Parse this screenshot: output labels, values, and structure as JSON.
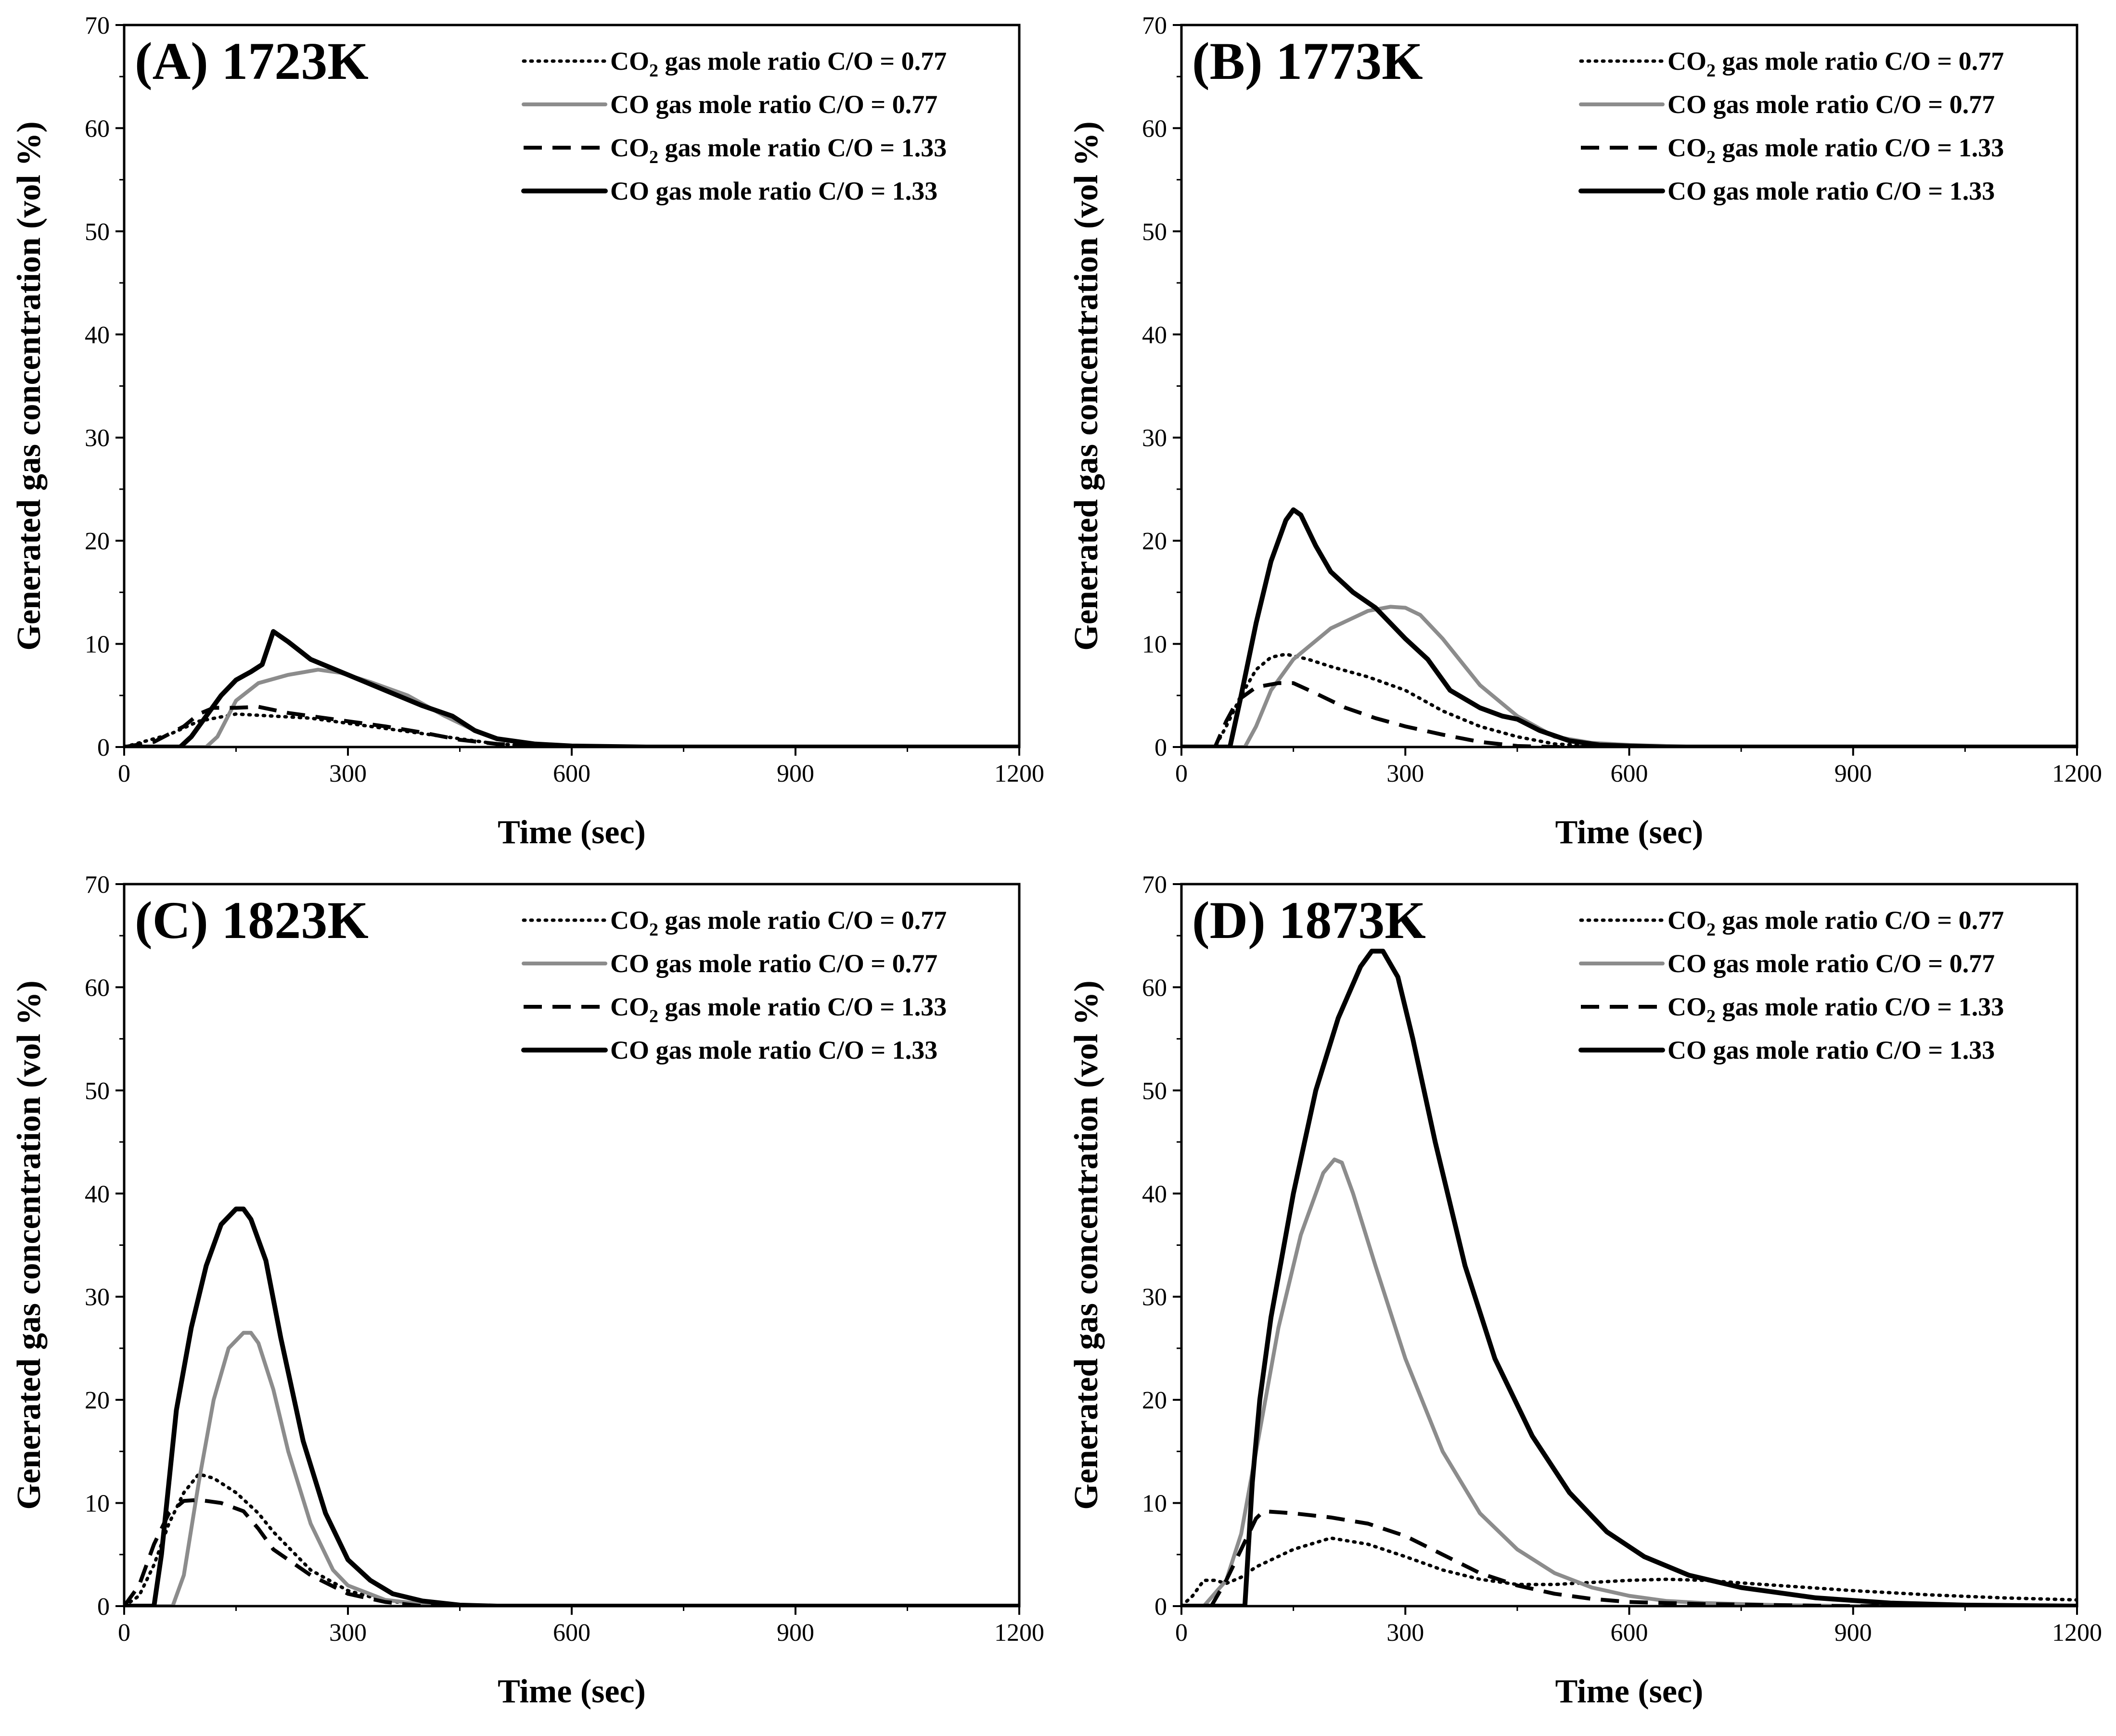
{
  "figure": {
    "series_names": [
      "CO2 gas mole ratio C/O = 0.77",
      "CO gas mole ratio C/O = 0.77",
      "CO2 gas mole ratio C/O = 1.33",
      "CO gas mole ratio C/O = 1.33"
    ],
    "series_styles": [
      {
        "color": "#000000",
        "dash": "dotted"
      },
      {
        "color": "#8c8c8c",
        "dash": "solid"
      },
      {
        "color": "#000000",
        "dash": "dashed"
      },
      {
        "color": "#000000",
        "dash": "solid-thick"
      }
    ]
  },
  "chart_data": [
    {
      "type": "line",
      "title": "(A) 1723K",
      "xlabel": "Time (sec)",
      "ylabel": "Generated gas concentration (vol %)",
      "xlim": [
        0,
        1200
      ],
      "ylim": [
        0,
        70
      ],
      "xticks": [
        "0",
        "300",
        "600",
        "900",
        "1200"
      ],
      "yticks": [
        "0",
        "10",
        "20",
        "30",
        "40",
        "50",
        "60",
        "70"
      ],
      "legend": [
        {
          "prefix": "CO",
          "sub": "2",
          "suffix": " gas mole ratio C/O = 0.77"
        },
        {
          "prefix": "CO gas mole ratio C/O = 0.77",
          "sub": "",
          "suffix": ""
        },
        {
          "prefix": "CO",
          "sub": "2",
          "suffix": " gas mole ratio C/O = 1.33"
        },
        {
          "prefix": "CO gas mole ratio C/O = 1.33",
          "sub": "",
          "suffix": ""
        }
      ],
      "series": [
        {
          "name": "CO2 gas mole ratio C/O = 0.77",
          "x": [
            0,
            60,
            100,
            150,
            200,
            250,
            300,
            350,
            400,
            450,
            500,
            550,
            600,
            700,
            1200
          ],
          "y": [
            0,
            1.2,
            2.5,
            3.2,
            3.0,
            2.8,
            2.3,
            1.8,
            1.3,
            0.8,
            0.3,
            0.1,
            0.05,
            0,
            0
          ]
        },
        {
          "name": "CO gas mole ratio C/O = 0.77",
          "x": [
            0,
            110,
            125,
            150,
            180,
            220,
            260,
            290,
            330,
            380,
            430,
            470,
            500,
            550,
            600,
            700,
            1200
          ],
          "y": [
            0,
            0,
            1,
            4.5,
            6.2,
            7.0,
            7.5,
            7.2,
            6.3,
            5.0,
            3.0,
            1.6,
            0.8,
            0.3,
            0.1,
            0,
            0
          ]
        },
        {
          "name": "CO2 gas mole ratio C/O = 1.33",
          "x": [
            0,
            40,
            80,
            100,
            120,
            150,
            180,
            200,
            220,
            260,
            300,
            350,
            400,
            450,
            500,
            550,
            600,
            1200
          ],
          "y": [
            0,
            0.5,
            2,
            3.2,
            3.8,
            3.8,
            3.9,
            3.6,
            3.3,
            2.9,
            2.5,
            2.0,
            1.4,
            0.7,
            0.3,
            0.1,
            0,
            0
          ]
        },
        {
          "name": "CO gas mole ratio C/O = 1.33",
          "x": [
            0,
            75,
            90,
            110,
            130,
            150,
            170,
            185,
            200,
            220,
            250,
            300,
            350,
            400,
            440,
            470,
            500,
            550,
            600,
            700,
            1200
          ],
          "y": [
            0,
            0,
            1,
            3,
            5,
            6.5,
            7.3,
            8.0,
            11.2,
            10.2,
            8.5,
            7.0,
            5.5,
            4.0,
            3.0,
            1.6,
            0.8,
            0.3,
            0.1,
            0,
            0
          ]
        }
      ]
    },
    {
      "type": "line",
      "title": "(B) 1773K",
      "xlabel": "Time (sec)",
      "ylabel": "Generated gas concentration (vol %)",
      "xlim": [
        0,
        1200
      ],
      "ylim": [
        0,
        70
      ],
      "xticks": [
        "0",
        "300",
        "600",
        "900",
        "1200"
      ],
      "yticks": [
        "0",
        "10",
        "20",
        "30",
        "40",
        "50",
        "60",
        "70"
      ],
      "legend": [
        {
          "prefix": "CO",
          "sub": "2",
          "suffix": " gas mole ratio C/O = 0.77"
        },
        {
          "prefix": "CO gas mole ratio C/O = 0.77",
          "sub": "",
          "suffix": ""
        },
        {
          "prefix": "CO",
          "sub": "2",
          "suffix": " gas mole ratio C/O = 1.33"
        },
        {
          "prefix": "CO gas mole ratio C/O = 1.33",
          "sub": "",
          "suffix": ""
        }
      ],
      "series": [
        {
          "name": "CO2 gas mole ratio C/O = 0.77",
          "x": [
            0,
            45,
            60,
            80,
            100,
            120,
            140,
            170,
            200,
            250,
            300,
            350,
            400,
            450,
            500,
            550,
            600,
            1200
          ],
          "y": [
            0,
            0,
            2,
            5,
            7.5,
            8.7,
            9.0,
            8.5,
            7.8,
            6.8,
            5.5,
            3.5,
            2.0,
            1.0,
            0.3,
            0.1,
            0,
            0
          ]
        },
        {
          "name": "CO gas mole ratio C/O = 0.77",
          "x": [
            0,
            85,
            100,
            120,
            150,
            200,
            250,
            280,
            300,
            320,
            350,
            400,
            450,
            500,
            550,
            600,
            650,
            700,
            1200
          ],
          "y": [
            0,
            0,
            2,
            5.5,
            8.5,
            11.5,
            13.2,
            13.6,
            13.5,
            12.8,
            10.5,
            6.0,
            3.0,
            1.0,
            0.4,
            0.2,
            0.1,
            0,
            0
          ]
        },
        {
          "name": "CO2 gas mole ratio C/O = 1.33",
          "x": [
            0,
            45,
            60,
            75,
            100,
            130,
            150,
            180,
            220,
            260,
            300,
            350,
            400,
            450,
            500,
            1200
          ],
          "y": [
            0,
            0,
            2.5,
            4.5,
            5.8,
            6.2,
            6.2,
            5.2,
            3.8,
            2.8,
            2.0,
            1.2,
            0.5,
            0.1,
            0,
            0
          ]
        },
        {
          "name": "CO gas mole ratio C/O = 1.33",
          "x": [
            0,
            65,
            80,
            100,
            120,
            140,
            150,
            160,
            180,
            200,
            230,
            260,
            300,
            330,
            360,
            400,
            430,
            450,
            480,
            520,
            560,
            600,
            650,
            1200
          ],
          "y": [
            0,
            0,
            5,
            12,
            18,
            22,
            23,
            22.5,
            19.5,
            17,
            15,
            13.5,
            10.5,
            8.5,
            5.5,
            3.8,
            3.0,
            2.7,
            1.6,
            0.6,
            0.2,
            0.1,
            0,
            0
          ]
        }
      ]
    },
    {
      "type": "line",
      "title": "(C) 1823K",
      "xlabel": "Time (sec)",
      "ylabel": "Generated gas concentration (vol %)",
      "xlim": [
        0,
        1200
      ],
      "ylim": [
        0,
        70
      ],
      "xticks": [
        "0",
        "300",
        "600",
        "900",
        "1200"
      ],
      "yticks": [
        "0",
        "10",
        "20",
        "30",
        "40",
        "50",
        "60",
        "70"
      ],
      "legend": [
        {
          "prefix": "CO",
          "sub": "2",
          "suffix": " gas mole ratio C/O = 0.77"
        },
        {
          "prefix": "CO gas mole ratio C/O = 0.77",
          "sub": "",
          "suffix": ""
        },
        {
          "prefix": "CO",
          "sub": "2",
          "suffix": " gas mole ratio C/O = 1.33"
        },
        {
          "prefix": "CO gas mole ratio C/O = 1.33",
          "sub": "",
          "suffix": ""
        }
      ],
      "series": [
        {
          "name": "CO2 gas mole ratio C/O = 0.77",
          "x": [
            0,
            20,
            40,
            60,
            80,
            100,
            120,
            150,
            180,
            200,
            250,
            300,
            350,
            400,
            450,
            600,
            1200
          ],
          "y": [
            0,
            1,
            4,
            8,
            11,
            12.8,
            12.4,
            11.0,
            9.0,
            7.2,
            3.5,
            1.5,
            0.5,
            0.2,
            0,
            0,
            0
          ]
        },
        {
          "name": "CO gas mole ratio C/O = 0.77",
          "x": [
            0,
            65,
            80,
            100,
            120,
            140,
            160,
            170,
            180,
            200,
            220,
            250,
            280,
            300,
            350,
            400,
            450,
            1200
          ],
          "y": [
            0,
            0,
            3,
            12,
            20,
            25,
            26.5,
            26.5,
            25.5,
            21,
            15,
            8,
            3.5,
            2.0,
            0.6,
            0.2,
            0,
            0
          ]
        },
        {
          "name": "CO2 gas mole ratio C/O = 1.33",
          "x": [
            0,
            20,
            40,
            60,
            80,
            100,
            130,
            160,
            180,
            200,
            250,
            300,
            350,
            400,
            1200
          ],
          "y": [
            0,
            2,
            6,
            9,
            10.2,
            10.3,
            10.0,
            9.2,
            7.5,
            5.5,
            3.0,
            1.2,
            0.4,
            0,
            0
          ]
        },
        {
          "name": "CO gas mole ratio C/O = 1.33",
          "x": [
            0,
            40,
            50,
            60,
            70,
            90,
            110,
            130,
            150,
            160,
            170,
            190,
            210,
            240,
            270,
            300,
            330,
            360,
            400,
            450,
            500,
            1200
          ],
          "y": [
            0,
            0,
            5,
            12,
            19,
            27,
            33,
            37,
            38.5,
            38.5,
            37.5,
            33.5,
            26,
            16,
            9,
            4.5,
            2.5,
            1.2,
            0.5,
            0.1,
            0,
            0
          ]
        }
      ]
    },
    {
      "type": "line",
      "title": "(D) 1873K",
      "xlabel": "Time (sec)",
      "ylabel": "Generated gas concentration (vol %)",
      "xlim": [
        0,
        1200
      ],
      "ylim": [
        0,
        70
      ],
      "xticks": [
        "0",
        "300",
        "600",
        "900",
        "1200"
      ],
      "yticks": [
        "0",
        "10",
        "20",
        "30",
        "40",
        "50",
        "60",
        "70"
      ],
      "legend": [
        {
          "prefix": "CO",
          "sub": "2",
          "suffix": " gas mole ratio C/O = 0.77"
        },
        {
          "prefix": "CO gas mole ratio C/O = 0.77",
          "sub": "",
          "suffix": ""
        },
        {
          "prefix": "CO",
          "sub": "2",
          "suffix": " gas mole ratio C/O = 1.33"
        },
        {
          "prefix": "CO gas mole ratio C/O = 1.33",
          "sub": "",
          "suffix": ""
        }
      ],
      "series": [
        {
          "name": "CO2 gas mole ratio C/O = 0.77",
          "x": [
            0,
            15,
            30,
            45,
            60,
            80,
            100,
            150,
            200,
            250,
            300,
            350,
            400,
            450,
            500,
            550,
            600,
            650,
            700,
            800,
            900,
            1000,
            1100,
            1200
          ],
          "y": [
            0,
            1,
            2.5,
            2.5,
            2.2,
            2.8,
            3.8,
            5.5,
            6.6,
            6.0,
            4.8,
            3.5,
            2.6,
            2.1,
            2.1,
            2.3,
            2.5,
            2.6,
            2.5,
            2.0,
            1.5,
            1.1,
            0.8,
            0.6
          ]
        },
        {
          "name": "CO gas mole ratio C/O = 0.77",
          "x": [
            0,
            30,
            60,
            80,
            100,
            130,
            160,
            190,
            205,
            215,
            230,
            260,
            300,
            350,
            400,
            450,
            500,
            550,
            600,
            650,
            700,
            800,
            900,
            1200
          ],
          "y": [
            0,
            0,
            2.5,
            7,
            15,
            27,
            36,
            42,
            43.3,
            43,
            40,
            33,
            24,
            15,
            9,
            5.5,
            3.2,
            1.8,
            1.0,
            0.5,
            0.3,
            0.1,
            0,
            0
          ]
        },
        {
          "name": "CO2 gas mole ratio C/O = 1.33",
          "x": [
            0,
            40,
            60,
            80,
            100,
            110,
            150,
            200,
            250,
            300,
            350,
            400,
            450,
            500,
            550,
            600,
            700,
            800,
            900,
            1200
          ],
          "y": [
            0,
            0,
            2.5,
            5.5,
            8.5,
            9.2,
            9.0,
            8.6,
            8.0,
            6.8,
            5.0,
            3.2,
            2.0,
            1.2,
            0.7,
            0.4,
            0.2,
            0.1,
            0,
            0
          ]
        },
        {
          "name": "CO gas mole ratio C/O = 1.33",
          "x": [
            0,
            85,
            95,
            105,
            120,
            150,
            180,
            210,
            240,
            255,
            270,
            290,
            310,
            340,
            380,
            420,
            470,
            520,
            570,
            620,
            680,
            750,
            850,
            950,
            1050,
            1200
          ],
          "y": [
            0,
            0,
            12,
            20,
            28,
            40,
            50,
            57,
            62,
            63.5,
            63.5,
            61,
            55,
            45,
            33,
            24,
            16.5,
            11,
            7.2,
            4.8,
            3.0,
            1.8,
            0.8,
            0.3,
            0.1,
            0
          ]
        }
      ]
    }
  ]
}
